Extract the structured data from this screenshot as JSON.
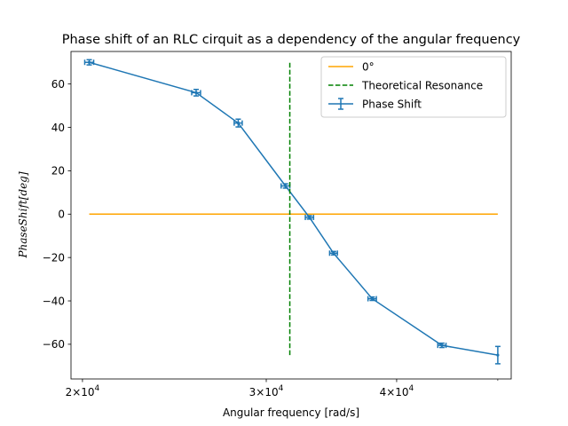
{
  "chart_data": {
    "type": "line",
    "title": "Phase shift of an RLC cirquit as a dependency of the angular frequency",
    "xlabel": "Angular frequency [rad/s]",
    "ylabel": "$Phase Shift [deg]$",
    "ylabel_display": "PhaseShift[deg]",
    "xscale": "log",
    "xlim": [
      19500,
      51500
    ],
    "ylim": [
      -76,
      75
    ],
    "x_ticks": [
      {
        "value": 20000,
        "base": "2",
        "exp": "4"
      },
      {
        "value": 30000,
        "base": "3",
        "exp": "4"
      },
      {
        "value": 40000,
        "base": "4",
        "exp": "4"
      }
    ],
    "y_ticks": [
      60,
      40,
      20,
      0,
      -20,
      -40,
      -60
    ],
    "grid": false,
    "legend_position": "upper right",
    "series": [
      {
        "name": "Phase Shift",
        "color": "#1f77b4",
        "style": "errorbar",
        "x": [
          20300,
          25700,
          28200,
          31300,
          33000,
          34800,
          37900,
          44200,
          50000
        ],
        "y": [
          70,
          56,
          42,
          13,
          -1.5,
          -18,
          -39,
          -60.5,
          -65
        ],
        "yerr": [
          1.2,
          1.5,
          1.8,
          1.0,
          0.8,
          0.8,
          0.8,
          1.0,
          4.0
        ],
        "xerr": [
          200,
          250,
          250,
          300,
          300,
          300,
          350,
          400,
          0
        ]
      },
      {
        "name": "0°",
        "color": "#ffa500",
        "style": "solid",
        "x": [
          20300,
          50000
        ],
        "y": [
          0,
          0
        ]
      },
      {
        "name": "Theoretical Resonance",
        "color": "#008000",
        "style": "dashed",
        "x": [
          31600,
          31600
        ],
        "y": [
          -65,
          70
        ]
      }
    ],
    "legend_entries": [
      "0°",
      "Theoretical Resonance",
      "Phase Shift"
    ]
  }
}
